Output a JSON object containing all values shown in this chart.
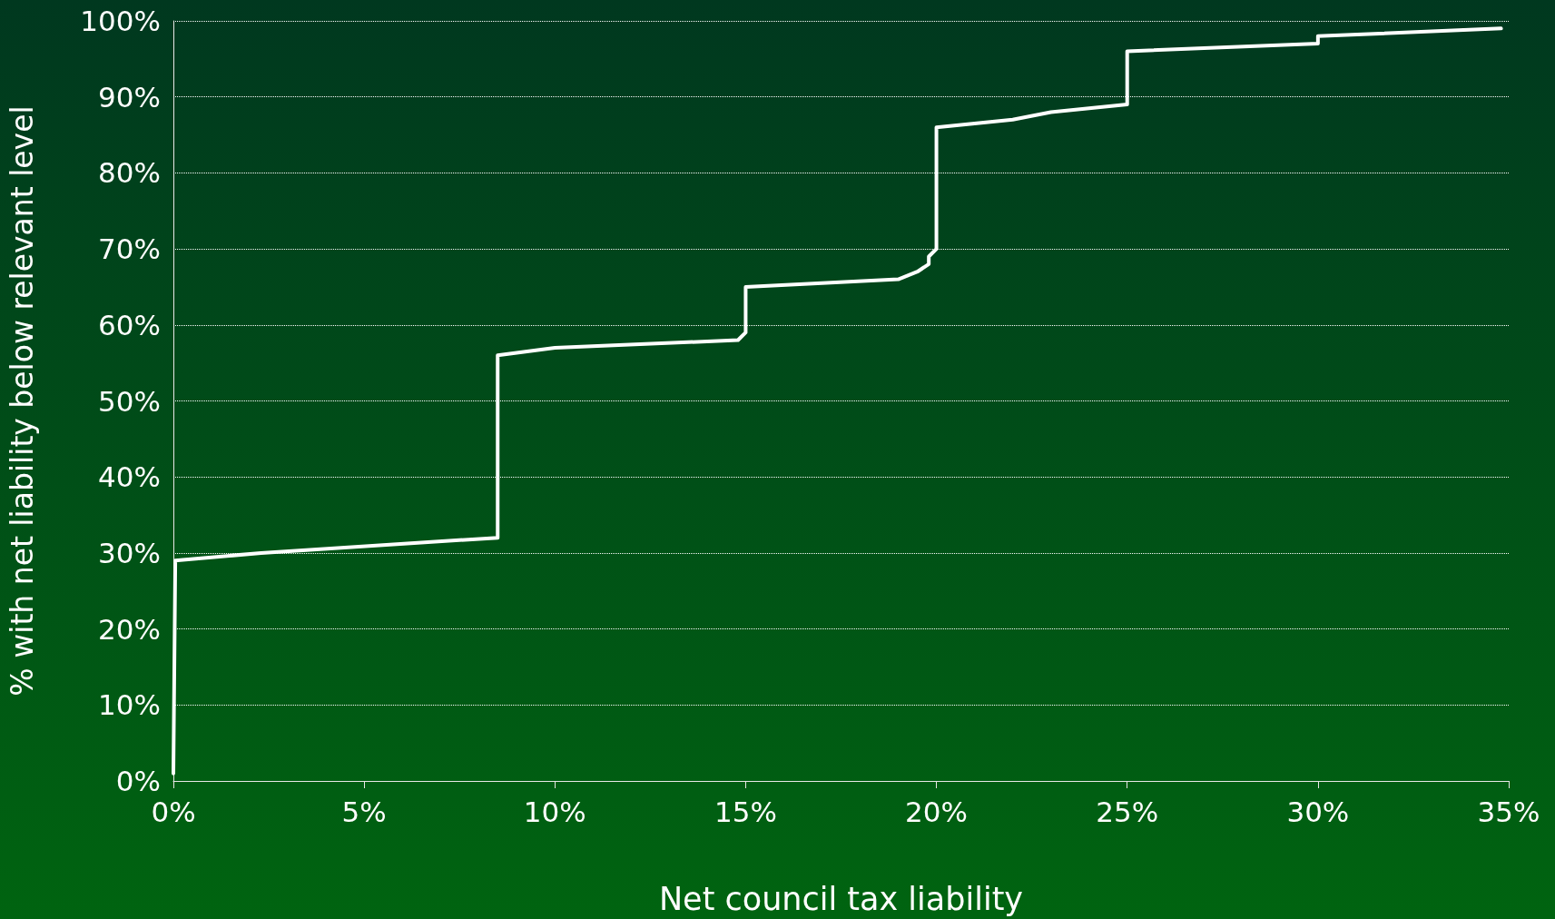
{
  "chart_data": {
    "type": "line",
    "xlabel": "Net council tax liability",
    "ylabel": "% with net liability below relevant level",
    "x": [
      0,
      0.05,
      2.3,
      8.5,
      8.5,
      10,
      14.8,
      15,
      15,
      19,
      19.5,
      19.8,
      19.8,
      20,
      20,
      22,
      23,
      25,
      25,
      30,
      30,
      34.8
    ],
    "series": [
      {
        "color": "#ffffff",
        "values": [
          1,
          29,
          30,
          32,
          56,
          57,
          58,
          59,
          65,
          66,
          67,
          68,
          69,
          70,
          86,
          87,
          88,
          89,
          96,
          97,
          98,
          99
        ]
      }
    ],
    "xlim": [
      0,
      35
    ],
    "xticks": [
      {
        "value": 0,
        "label": "0%"
      },
      {
        "value": 5,
        "label": "5%"
      },
      {
        "value": 10,
        "label": "10%"
      },
      {
        "value": 15,
        "label": "15%"
      },
      {
        "value": 20,
        "label": "20%"
      },
      {
        "value": 25,
        "label": "25%"
      },
      {
        "value": 30,
        "label": "30%"
      },
      {
        "value": 35,
        "label": "35%"
      }
    ],
    "ylim": [
      0,
      100
    ],
    "yticks": [
      {
        "value": 0,
        "label": "0%"
      },
      {
        "value": 10,
        "label": "10%"
      },
      {
        "value": 20,
        "label": "20%"
      },
      {
        "value": 30,
        "label": "30%"
      },
      {
        "value": 40,
        "label": "40%"
      },
      {
        "value": 50,
        "label": "50%"
      },
      {
        "value": 60,
        "label": "60%"
      },
      {
        "value": 70,
        "label": "70%"
      },
      {
        "value": 80,
        "label": "80%"
      },
      {
        "value": 90,
        "label": "90%"
      },
      {
        "value": 100,
        "label": "100%"
      }
    ],
    "grid": "y",
    "marker": "none",
    "line_style": "solid"
  }
}
